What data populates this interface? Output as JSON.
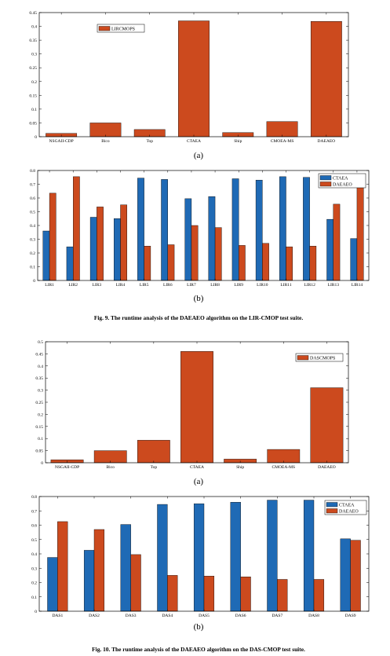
{
  "chart_data": [
    {
      "type": "bar",
      "categories": [
        "NSGAII-CDP",
        "Bico",
        "Top",
        "CTAEA",
        "Ship",
        "CMOEA-MS",
        "DAEAEO"
      ],
      "series": [
        {
          "name": "LIRCMOPS",
          "values": [
            0.012,
            0.05,
            0.026,
            0.42,
            0.015,
            0.055,
            0.418
          ]
        }
      ],
      "ylim": [
        0,
        0.45
      ],
      "yticks": [
        "0",
        "0.05",
        "0.1",
        "0.15",
        "0.2",
        "0.25",
        "0.3",
        "0.35",
        "0.4",
        "0.45"
      ],
      "legend_position": "top-left",
      "grid": false,
      "sublabel": "(a)"
    },
    {
      "type": "bar",
      "categories": [
        "LIR1",
        "LIR2",
        "LIR3",
        "LIR4",
        "LIR5",
        "LIR6",
        "LIR7",
        "LIR8",
        "LIR9",
        "LIR10",
        "LIR11",
        "LIR12",
        "LIR13",
        "LIR14"
      ],
      "series": [
        {
          "name": "CTAEA",
          "values": [
            0.36,
            0.245,
            0.46,
            0.45,
            0.745,
            0.735,
            0.595,
            0.61,
            0.74,
            0.73,
            0.755,
            0.75,
            0.445,
            0.305
          ]
        },
        {
          "name": "DAEAEO",
          "values": [
            0.635,
            0.755,
            0.535,
            0.55,
            0.25,
            0.26,
            0.4,
            0.385,
            0.255,
            0.27,
            0.245,
            0.25,
            0.555,
            0.695
          ]
        }
      ],
      "ylim": [
        0,
        0.8
      ],
      "yticks": [
        "0",
        "0.1",
        "0.2",
        "0.3",
        "0.4",
        "0.5",
        "0.6",
        "0.7",
        "0.8"
      ],
      "legend_position": "top-right",
      "grid": false,
      "sublabel": "(b)"
    },
    {
      "type": "bar",
      "categories": [
        "NSGAII-CDP",
        "Bico",
        "Top",
        "CTAEA",
        "Ship",
        "CMOEA-MS",
        "DAEAEO"
      ],
      "series": [
        {
          "name": "DASCMOPS",
          "values": [
            0.012,
            0.05,
            0.093,
            0.46,
            0.015,
            0.055,
            0.31
          ]
        }
      ],
      "ylim": [
        0,
        0.5
      ],
      "yticks": [
        "0",
        "0.05",
        "0.1",
        "0.15",
        "0.2",
        "0.25",
        "0.3",
        "0.35",
        "0.4",
        "0.45",
        "0.5"
      ],
      "legend_position": "top-right",
      "grid": false,
      "sublabel": "(a)"
    },
    {
      "type": "bar",
      "categories": [
        "DAS1",
        "DAS2",
        "DAS3",
        "DAS4",
        "DAS5",
        "DAS6",
        "DAS7",
        "DAS8",
        "DAS9"
      ],
      "series": [
        {
          "name": "CTAEA",
          "values": [
            0.375,
            0.425,
            0.605,
            0.745,
            0.75,
            0.76,
            0.775,
            0.775,
            0.505
          ]
        },
        {
          "name": "DAEAEO",
          "values": [
            0.625,
            0.57,
            0.395,
            0.25,
            0.245,
            0.24,
            0.222,
            0.222,
            0.495
          ]
        }
      ],
      "ylim": [
        0,
        0.8
      ],
      "yticks": [
        "0",
        "0.1",
        "0.2",
        "0.3",
        "0.4",
        "0.5",
        "0.6",
        "0.7",
        "0.8"
      ],
      "legend_position": "top-right",
      "grid": false,
      "sublabel": "(b)"
    }
  ],
  "captions": {
    "fig9": "Fig. 9.  The runtime analysis of the DAEAEO algorithm on the LIR-CMOP test suite.",
    "fig10": "Fig. 10.  The runtime analysis of the DAEAEO algorithm on the DAS-CMOP test suite."
  },
  "colors": {
    "red": "#cc4a1e",
    "blue": "#1f6ab5"
  }
}
